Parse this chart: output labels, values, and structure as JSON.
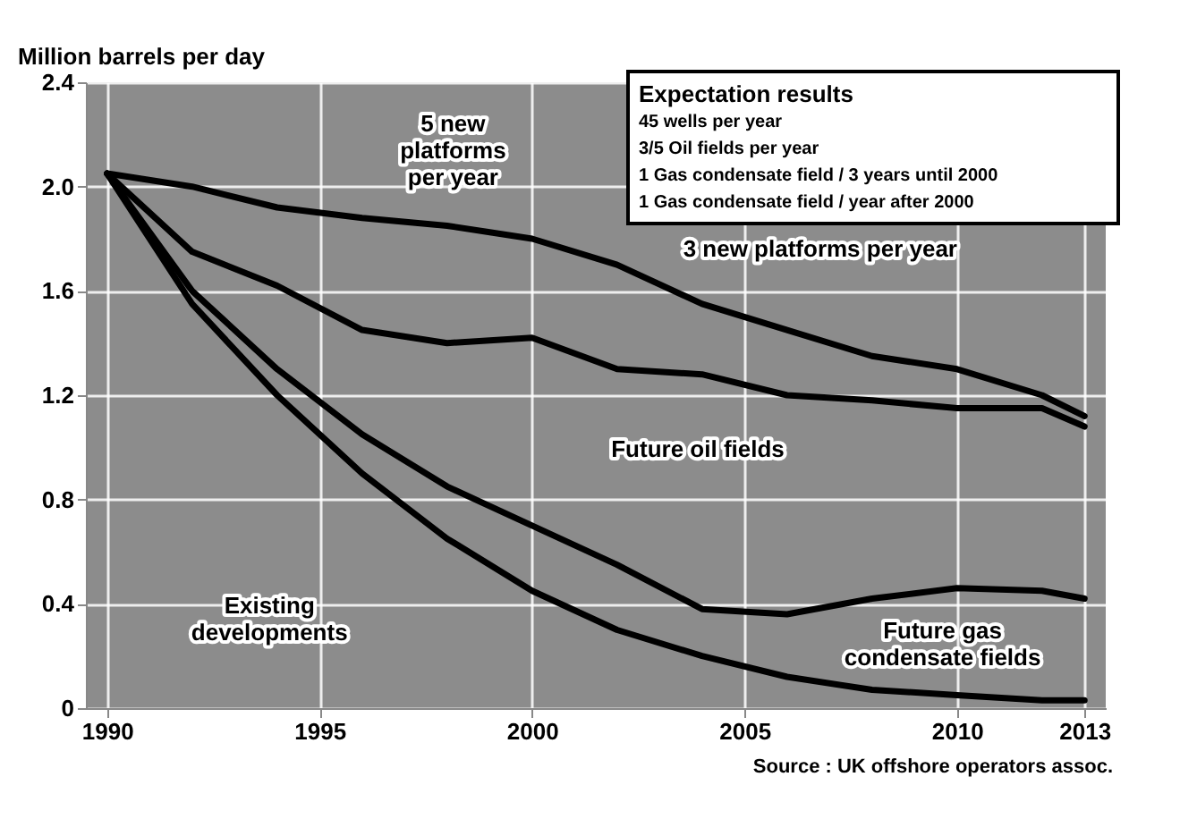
{
  "chart_data": {
    "type": "line",
    "ylabel": "Million barrels per day",
    "x": [
      1990,
      1992,
      1994,
      1996,
      1998,
      2000,
      2002,
      2004,
      2006,
      2008,
      2010,
      2012,
      2013
    ],
    "series": [
      {
        "color": "#000000",
        "values": [
          2.05,
          2.0,
          1.92,
          1.88,
          1.85,
          1.8,
          1.7,
          1.55,
          1.45,
          1.35,
          1.3,
          1.2,
          1.12
        ]
      },
      {
        "color": "#000000",
        "values": [
          2.05,
          1.75,
          1.62,
          1.45,
          1.4,
          1.42,
          1.3,
          1.28,
          1.2,
          1.18,
          1.15,
          1.15,
          1.08
        ]
      },
      {
        "color": "#000000",
        "values": [
          2.05,
          1.6,
          1.3,
          1.05,
          0.85,
          0.7,
          0.55,
          0.38,
          0.36,
          0.42,
          0.46,
          0.45,
          0.42
        ]
      },
      {
        "color": "#000000",
        "values": [
          2.05,
          1.55,
          1.2,
          0.9,
          0.65,
          0.45,
          0.3,
          0.2,
          0.12,
          0.07,
          0.05,
          0.03,
          0.03
        ]
      }
    ],
    "xlim": [
      1989.5,
      2013.5
    ],
    "xticks": [
      1990,
      1995,
      2000,
      2005,
      2010,
      2013
    ],
    "ylim": [
      0,
      2.4
    ],
    "yticks": [
      {
        "value": 0,
        "label": "0"
      },
      0.4,
      0.8,
      1.2,
      1.6,
      {
        "value": 2,
        "label": "2.0"
      },
      2.4
    ],
    "grid": true,
    "annotations": [
      "5 new platforms per year",
      "3 new platforms per year",
      "Future oil fields",
      "Existing developments",
      "Future gas condensate fields",
      "Expectation results",
      "45 wells per year",
      "3/5 Oil fields per year",
      "1 Gas condensate field / 3 years until 2000",
      "1 Gas condensate field / year after 2000",
      "Source : UK offshore operators assoc."
    ]
  }
}
